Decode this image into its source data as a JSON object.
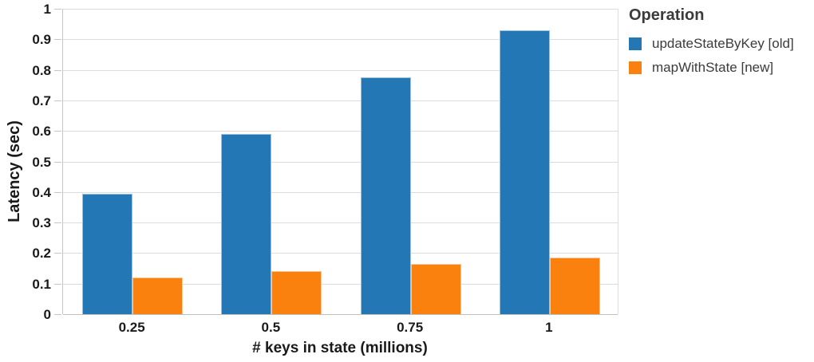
{
  "chart_data": {
    "type": "bar",
    "title": "",
    "xlabel": "# keys in state (millions)",
    "ylabel": "Latency (sec)",
    "categories": [
      "0.25",
      "0.5",
      "0.75",
      "1"
    ],
    "series": [
      {
        "name": "updateStateByKey [old]",
        "color": "#2277B4",
        "values": [
          0.395,
          0.59,
          0.775,
          0.93
        ]
      },
      {
        "name": "mapWithState [new]",
        "color": "#FB810E",
        "values": [
          0.12,
          0.14,
          0.165,
          0.185
        ]
      }
    ],
    "ylim": [
      0,
      1
    ],
    "yticks": [
      {
        "label": "1",
        "value": 1.0
      },
      {
        "label": "0.9",
        "value": 0.9
      },
      {
        "label": "0.8",
        "value": 0.8
      },
      {
        "label": "0.7",
        "value": 0.7
      },
      {
        "label": "0.6",
        "value": 0.6
      },
      {
        "label": "0.5",
        "value": 0.5
      },
      {
        "label": "0.4",
        "value": 0.4
      },
      {
        "label": "0.3",
        "value": 0.3
      },
      {
        "label": "0.2",
        "value": 0.2
      },
      {
        "label": "0.1",
        "value": 0.1
      },
      {
        "label": "0",
        "value": 0.0
      }
    ],
    "grid": true,
    "legend_title": "Operation",
    "legend_position": "right",
    "colors": {
      "gridline": "#dcdcdc",
      "axis_line": "#c0c0c0",
      "tick_text": "#1a1a1a",
      "legend_text": "#3b3b3b",
      "background": "#ffffff"
    }
  }
}
